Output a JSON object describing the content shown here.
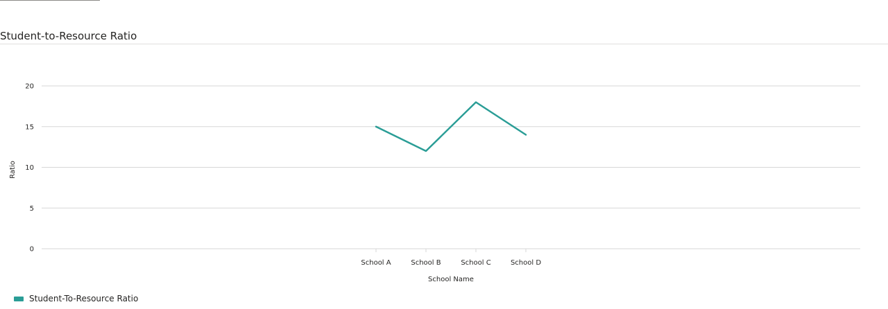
{
  "visual": {
    "title": "Student-to-Resource Ratio"
  },
  "legend": {
    "label": "Student-To-Resource Ratio"
  },
  "colors": {
    "series": "#2a9d96",
    "grid": "#d7d7d7",
    "axis_text": "#252423"
  },
  "chart_data": {
    "type": "line",
    "title": "Student-to-Resource Ratio",
    "xlabel": "School Name",
    "ylabel": "Ratio",
    "categories": [
      "School A",
      "School B",
      "School C",
      "School D"
    ],
    "series": [
      {
        "name": "Student-To-Resource Ratio",
        "values": [
          15,
          12,
          18,
          14
        ]
      }
    ],
    "ylim": [
      0,
      20
    ],
    "yticks": [
      0,
      5,
      10,
      15,
      20
    ],
    "grid": true,
    "legend_position": "bottom-left"
  }
}
